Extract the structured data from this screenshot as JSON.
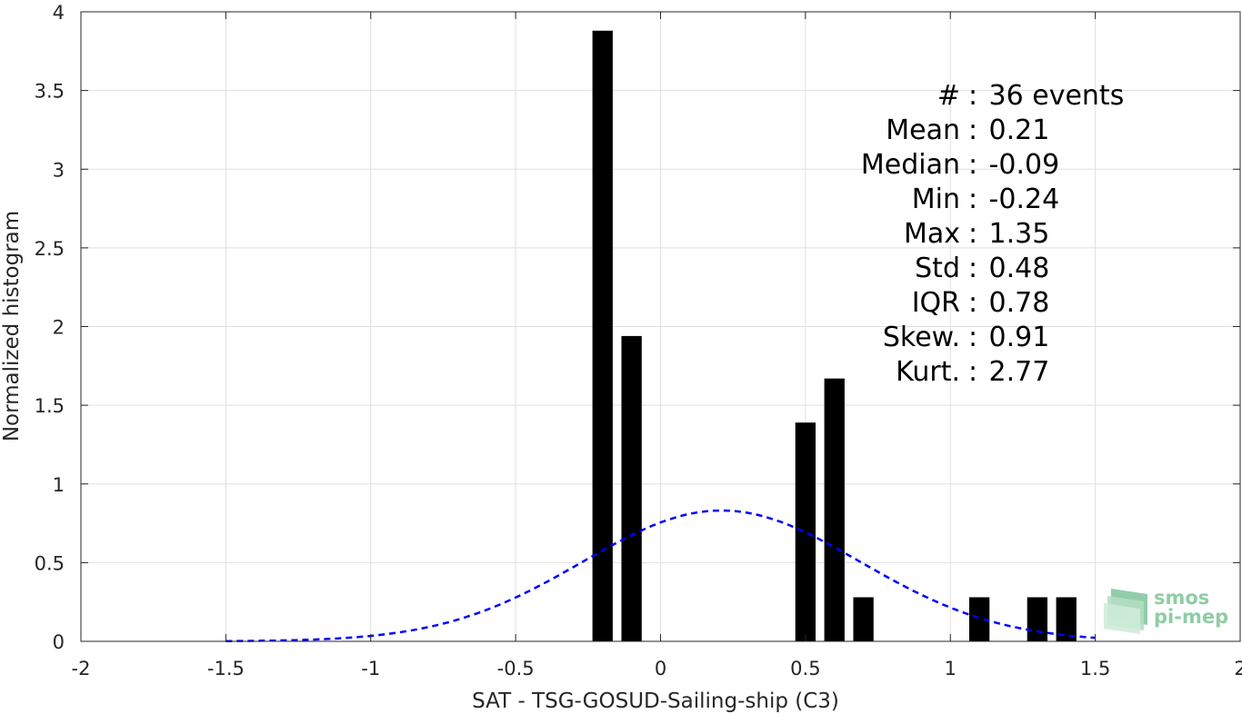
{
  "chart_data": {
    "type": "bar",
    "xlabel": "SAT - TSG-GOSUD-Sailing-ship (C3)",
    "ylabel": "Normalized histogram",
    "xlim": [
      -2,
      2
    ],
    "ylim": [
      0,
      4
    ],
    "xticks": [
      -2,
      -1.5,
      -1,
      -0.5,
      0,
      0.5,
      1,
      1.5,
      2
    ],
    "yticks": [
      0,
      0.5,
      1,
      1.5,
      2,
      2.5,
      3,
      3.5,
      4
    ],
    "xtick_labels": [
      "-2",
      "-1.5",
      "-1",
      "-0.5",
      "0",
      "0.5",
      "1",
      "1.5",
      "2"
    ],
    "ytick_labels": [
      "0",
      "0.5",
      "1",
      "1.5",
      "2",
      "2.5",
      "3",
      "3.5",
      "4"
    ],
    "grid": true,
    "bar_width": 0.07,
    "bars": [
      {
        "x": -0.2,
        "value": 3.88
      },
      {
        "x": -0.1,
        "value": 1.94
      },
      {
        "x": 0.5,
        "value": 1.39
      },
      {
        "x": 0.6,
        "value": 1.67
      },
      {
        "x": 0.7,
        "value": 0.28
      },
      {
        "x": 1.1,
        "value": 0.28
      },
      {
        "x": 1.3,
        "value": 0.28
      },
      {
        "x": 1.4,
        "value": 0.28
      }
    ],
    "fit_curve": {
      "style": "dashed",
      "color": "#0000ff",
      "mean": 0.21,
      "std": 0.48,
      "x_range": [
        -1.5,
        1.5
      ]
    },
    "stats": [
      "#  : 36 events",
      "Mean : 0.21",
      "Median : -0.09",
      "Min : -0.24",
      "Max : 1.35",
      "Std : 0.48",
      "IQR : 0.78",
      "Skew. : 0.91",
      "Kurt. : 2.77"
    ],
    "bar_color": "#000000"
  },
  "logo": {
    "line1": "smos",
    "line2": "pi-mep",
    "color": "#8fcca5"
  }
}
